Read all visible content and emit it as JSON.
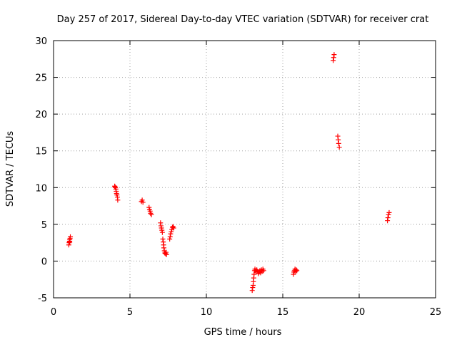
{
  "chart_data": {
    "type": "scatter",
    "title": "Day 257 of 2017, Sidereal Day-to-day VTEC variation (SDTVAR) for receiver crat",
    "xlabel": "GPS time / hours",
    "ylabel": "SDTVAR / TECUs",
    "xlim": [
      0,
      25
    ],
    "ylim": [
      -5,
      30
    ],
    "xticks": [
      0,
      5,
      10,
      15,
      20,
      25
    ],
    "yticks": [
      -5,
      0,
      5,
      10,
      15,
      20,
      25,
      30
    ],
    "grid": true,
    "marker": "+",
    "color": "#ff0000",
    "series": [
      {
        "name": "SDTVAR",
        "points": [
          [
            1.0,
            2.2
          ],
          [
            1.02,
            2.5
          ],
          [
            1.04,
            2.7
          ],
          [
            1.06,
            2.9
          ],
          [
            1.08,
            3.1
          ],
          [
            1.1,
            3.3
          ],
          [
            1.06,
            2.6
          ],
          [
            4.0,
            10.2
          ],
          [
            4.05,
            10.0
          ],
          [
            4.08,
            9.8
          ],
          [
            4.1,
            9.5
          ],
          [
            4.12,
            9.2
          ],
          [
            4.15,
            9.0
          ],
          [
            4.18,
            8.7
          ],
          [
            4.2,
            8.3
          ],
          [
            4.02,
            10.1
          ],
          [
            5.75,
            8.1
          ],
          [
            5.8,
            8.3
          ],
          [
            5.85,
            8.0
          ],
          [
            6.25,
            7.3
          ],
          [
            6.28,
            7.0
          ],
          [
            6.32,
            6.8
          ],
          [
            6.35,
            6.5
          ],
          [
            6.4,
            6.3
          ],
          [
            7.0,
            5.2
          ],
          [
            7.03,
            4.8
          ],
          [
            7.06,
            4.5
          ],
          [
            7.09,
            4.2
          ],
          [
            7.12,
            3.9
          ],
          [
            7.15,
            3.0
          ],
          [
            7.18,
            2.6
          ],
          [
            7.2,
            2.2
          ],
          [
            7.22,
            1.8
          ],
          [
            7.25,
            1.4
          ],
          [
            7.28,
            1.1
          ],
          [
            7.32,
            1.0
          ],
          [
            7.36,
            1.2
          ],
          [
            7.4,
            0.9
          ],
          [
            7.6,
            3.0
          ],
          [
            7.63,
            3.3
          ],
          [
            7.66,
            3.7
          ],
          [
            7.7,
            4.0
          ],
          [
            7.74,
            4.3
          ],
          [
            7.78,
            4.6
          ],
          [
            7.82,
            4.7
          ],
          [
            7.86,
            4.5
          ],
          [
            13.0,
            -4.0
          ],
          [
            13.03,
            -3.6
          ],
          [
            13.06,
            -3.3
          ],
          [
            13.08,
            -2.8
          ],
          [
            13.1,
            -2.3
          ],
          [
            13.12,
            -1.8
          ],
          [
            13.15,
            -1.3
          ],
          [
            13.18,
            -1.1
          ],
          [
            13.22,
            -1.3
          ],
          [
            13.26,
            -1.5
          ],
          [
            13.3,
            -1.2
          ],
          [
            13.35,
            -1.4
          ],
          [
            13.4,
            -1.7
          ],
          [
            13.45,
            -1.5
          ],
          [
            13.5,
            -1.3
          ],
          [
            13.55,
            -1.6
          ],
          [
            13.6,
            -1.2
          ],
          [
            13.65,
            -1.4
          ],
          [
            13.7,
            -1.1
          ],
          [
            13.75,
            -1.3
          ],
          [
            15.7,
            -1.8
          ],
          [
            15.73,
            -1.5
          ],
          [
            15.76,
            -1.3
          ],
          [
            15.8,
            -1.1
          ],
          [
            15.84,
            -1.4
          ],
          [
            15.88,
            -1.2
          ],
          [
            15.92,
            -1.3
          ],
          [
            18.3,
            27.3
          ],
          [
            18.33,
            27.7
          ],
          [
            18.36,
            28.1
          ],
          [
            18.6,
            17.0
          ],
          [
            18.63,
            16.5
          ],
          [
            18.66,
            16.0
          ],
          [
            18.7,
            15.5
          ],
          [
            21.85,
            5.5
          ],
          [
            21.88,
            5.9
          ],
          [
            21.92,
            6.3
          ],
          [
            21.96,
            6.6
          ]
        ]
      }
    ]
  }
}
